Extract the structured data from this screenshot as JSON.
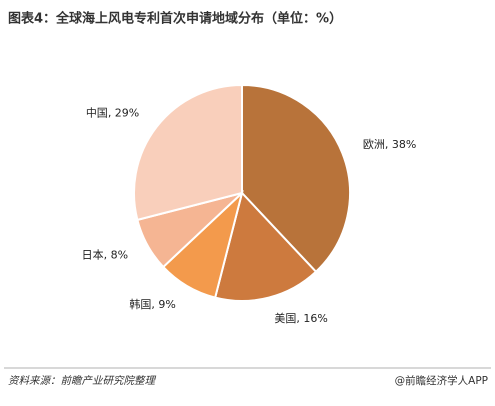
{
  "chart_data": {
    "type": "pie",
    "title": "图表4：全球海上风电专利首次申请地域分布（单位：%）",
    "categories": [
      "欧洲",
      "美国",
      "韩国",
      "日本",
      "中国"
    ],
    "values": [
      38,
      16,
      9,
      8,
      29
    ],
    "value_labels": [
      ", 38%",
      ", 16%",
      ", 9%",
      ", 8%",
      ", 29%"
    ],
    "colors": [
      "#b8733a",
      "#cd7a3e",
      "#f39a4c",
      "#f5b593",
      "#f9cfbb"
    ],
    "source": "资料来源：前瞻产业研究院整理",
    "credit": "@前瞻经济学人APP"
  }
}
